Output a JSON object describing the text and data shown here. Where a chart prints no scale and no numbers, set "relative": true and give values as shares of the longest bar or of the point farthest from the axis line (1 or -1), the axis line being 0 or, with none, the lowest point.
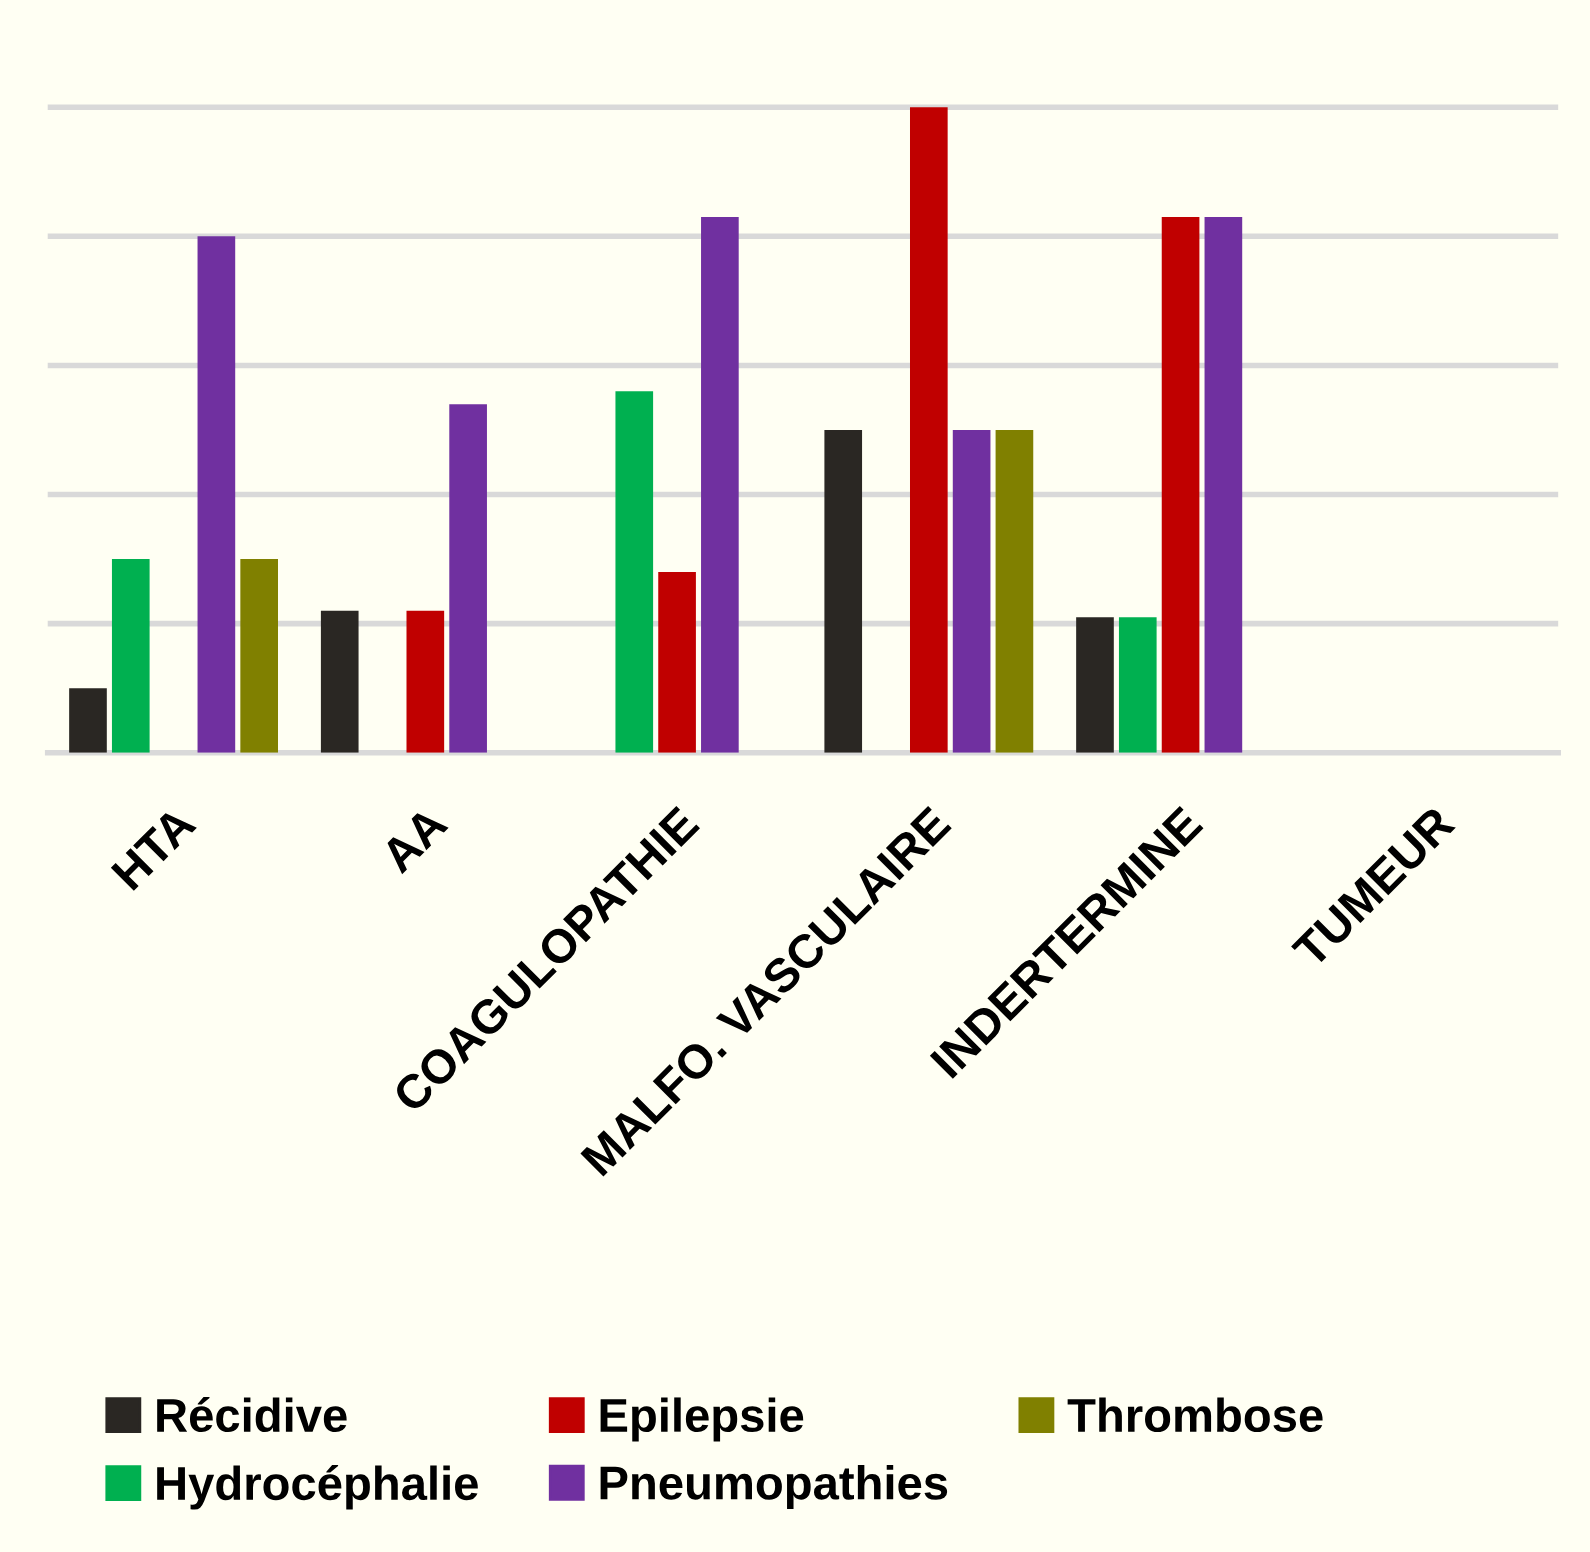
{
  "chart_data": {
    "type": "bar",
    "relative": true,
    "grid": "y",
    "legend": "bottom",
    "categories": [
      "HTA",
      "AA",
      "COAGULOPATHIE",
      "MALFO. VASCULAIRE",
      "INDERTERMINE",
      "TUMEUR"
    ],
    "series": [
      {
        "name": "Récidive",
        "color": "#2a2723",
        "values": [
          0.1,
          0.22,
          null,
          0.5,
          0.21,
          null
        ]
      },
      {
        "name": "Hydrocéphalie",
        "color": "#00b050",
        "values": [
          0.3,
          null,
          0.56,
          null,
          0.21,
          null
        ]
      },
      {
        "name": "Epilepsie",
        "color": "#c00000",
        "values": [
          null,
          0.22,
          0.28,
          1,
          0.83,
          null
        ]
      },
      {
        "name": "Pneumopathies",
        "color": "#7030a0",
        "values": [
          0.8,
          0.54,
          0.83,
          0.5,
          0.83,
          null
        ]
      },
      {
        "name": "Thrombose",
        "color": "#808000",
        "values": [
          0.3,
          null,
          null,
          0.5,
          null,
          null
        ]
      }
    ]
  }
}
